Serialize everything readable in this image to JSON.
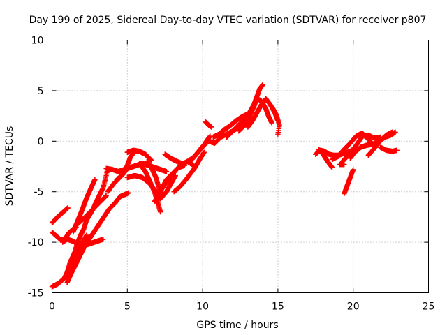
{
  "chart_data": {
    "type": "scatter",
    "title": "Day 199 of 2025, Sidereal Day-to-day VTEC variation (SDTVAR) for receiver p807",
    "xlabel": "GPS time / hours",
    "ylabel": "SDTVAR / TECUs",
    "xlim": [
      0,
      25
    ],
    "ylim": [
      -15,
      10
    ],
    "xticks": [
      0,
      5,
      10,
      15,
      20,
      25
    ],
    "yticks": [
      -15,
      -10,
      -5,
      0,
      5,
      10
    ],
    "xtick_labels": [
      "0",
      "5",
      "10",
      "15",
      "20",
      "25"
    ],
    "ytick_labels": [
      "-15",
      "-10",
      "-5",
      "0",
      "5",
      "10"
    ],
    "grid": true,
    "legend": "none",
    "marker": "+",
    "color": "#ff0000",
    "tracks": [
      [
        [
          0.0,
          -8.1
        ],
        [
          0.3,
          -7.6
        ],
        [
          0.6,
          -7.2
        ],
        [
          0.9,
          -6.8
        ],
        [
          1.05,
          -6.6
        ]
      ],
      [
        [
          0.0,
          -9.0
        ],
        [
          0.3,
          -9.4
        ],
        [
          0.6,
          -9.8
        ],
        [
          0.9,
          -9.6
        ],
        [
          1.1,
          -9.1
        ],
        [
          1.4,
          -8.7
        ],
        [
          1.6,
          -8.5
        ]
      ],
      [
        [
          0.0,
          -14.4
        ],
        [
          0.4,
          -14.1
        ],
        [
          0.8,
          -13.6
        ],
        [
          1.0,
          -13.0
        ],
        [
          1.3,
          -12.2
        ],
        [
          1.6,
          -11.2
        ],
        [
          2.0,
          -10.1
        ],
        [
          2.3,
          -9.3
        ]
      ],
      [
        [
          0.7,
          -10.0
        ],
        [
          1.0,
          -9.7
        ],
        [
          1.4,
          -9.9
        ],
        [
          1.8,
          -10.3
        ],
        [
          2.2,
          -10.3
        ],
        [
          2.6,
          -10.1
        ],
        [
          3.0,
          -9.9
        ],
        [
          3.4,
          -9.7
        ]
      ],
      [
        [
          1.0,
          -13.0
        ],
        [
          1.2,
          -12.0
        ],
        [
          1.5,
          -11.0
        ],
        [
          1.7,
          -10.0
        ],
        [
          1.9,
          -9.3
        ],
        [
          2.1,
          -8.7
        ],
        [
          2.3,
          -7.8
        ]
      ],
      [
        [
          1.0,
          -14.0
        ],
        [
          1.3,
          -13.0
        ],
        [
          1.6,
          -12.1
        ],
        [
          1.9,
          -11.2
        ],
        [
          2.2,
          -10.3
        ],
        [
          2.6,
          -9.4
        ],
        [
          3.0,
          -8.5
        ],
        [
          3.4,
          -7.6
        ],
        [
          3.8,
          -6.7
        ],
        [
          4.2,
          -6.1
        ],
        [
          4.5,
          -5.5
        ],
        [
          4.8,
          -5.3
        ],
        [
          5.1,
          -5.1
        ]
      ],
      [
        [
          1.6,
          -8.3
        ],
        [
          2.0,
          -7.8
        ],
        [
          2.4,
          -7.2
        ],
        [
          2.8,
          -6.6
        ],
        [
          3.2,
          -6.0
        ],
        [
          3.6,
          -5.4
        ]
      ],
      [
        [
          1.4,
          -9.0
        ],
        [
          1.7,
          -7.9
        ],
        [
          2.0,
          -6.8
        ],
        [
          2.3,
          -5.6
        ],
        [
          2.6,
          -4.6
        ],
        [
          2.85,
          -3.8
        ]
      ],
      [
        [
          2.3,
          -7.8
        ],
        [
          2.7,
          -6.8
        ],
        [
          3.0,
          -5.8
        ],
        [
          3.4,
          -4.6
        ],
        [
          3.6,
          -3.4
        ],
        [
          3.7,
          -2.7
        ]
      ],
      [
        [
          3.6,
          -2.7
        ],
        [
          4.0,
          -2.8
        ],
        [
          4.4,
          -3.0
        ],
        [
          4.8,
          -2.8
        ],
        [
          5.2,
          -2.6
        ],
        [
          5.6,
          -2.4
        ],
        [
          6.0,
          -2.2
        ],
        [
          6.4,
          -2.4
        ],
        [
          6.8,
          -2.6
        ],
        [
          7.2,
          -2.8
        ],
        [
          7.6,
          -3.0
        ]
      ],
      [
        [
          3.7,
          -5.0
        ],
        [
          4.1,
          -4.2
        ],
        [
          4.5,
          -3.6
        ],
        [
          4.8,
          -3.1
        ],
        [
          5.0,
          -2.7
        ]
      ],
      [
        [
          4.3,
          -3.8
        ],
        [
          4.7,
          -3.3
        ],
        [
          5.0,
          -2.4
        ],
        [
          5.2,
          -1.6
        ],
        [
          5.5,
          -1.0
        ]
      ],
      [
        [
          5.0,
          -3.6
        ],
        [
          5.5,
          -3.4
        ],
        [
          6.0,
          -3.6
        ],
        [
          6.5,
          -4.2
        ],
        [
          6.9,
          -5.0
        ],
        [
          7.2,
          -5.7
        ],
        [
          7.6,
          -5.0
        ],
        [
          7.9,
          -4.2
        ],
        [
          8.2,
          -3.4
        ]
      ],
      [
        [
          5.0,
          -1.1
        ],
        [
          5.4,
          -0.9
        ],
        [
          5.8,
          -1.0
        ],
        [
          6.2,
          -1.3
        ],
        [
          6.4,
          -1.6
        ],
        [
          6.6,
          -1.9
        ]
      ],
      [
        [
          6.3,
          -2.0
        ],
        [
          6.6,
          -2.6
        ],
        [
          6.9,
          -3.6
        ],
        [
          7.1,
          -4.6
        ],
        [
          7.3,
          -5.5
        ]
      ],
      [
        [
          5.8,
          -2.2
        ],
        [
          6.2,
          -3.0
        ],
        [
          6.5,
          -4.0
        ],
        [
          6.8,
          -5.0
        ],
        [
          7.0,
          -6.0
        ],
        [
          7.2,
          -7.0
        ]
      ],
      [
        [
          6.8,
          -6.0
        ],
        [
          7.2,
          -5.0
        ],
        [
          7.6,
          -3.8
        ],
        [
          8.0,
          -3.2
        ],
        [
          8.4,
          -2.6
        ],
        [
          8.8,
          -2.4
        ]
      ],
      [
        [
          7.0,
          -5.3
        ],
        [
          7.4,
          -4.5
        ],
        [
          7.8,
          -3.7
        ],
        [
          8.2,
          -2.9
        ],
        [
          8.6,
          -2.3
        ],
        [
          9.0,
          -2.0
        ],
        [
          9.4,
          -2.4
        ]
      ],
      [
        [
          7.5,
          -1.3
        ],
        [
          7.9,
          -1.7
        ],
        [
          8.3,
          -2.0
        ],
        [
          8.6,
          -2.2
        ]
      ],
      [
        [
          8.1,
          -5.0
        ],
        [
          8.5,
          -4.5
        ],
        [
          8.9,
          -3.8
        ],
        [
          9.2,
          -3.2
        ],
        [
          9.5,
          -2.6
        ],
        [
          9.8,
          -1.8
        ],
        [
          10.1,
          -1.1
        ]
      ],
      [
        [
          9.0,
          -2.0
        ],
        [
          9.4,
          -1.6
        ],
        [
          9.8,
          -0.9
        ],
        [
          10.1,
          -0.4
        ],
        [
          10.3,
          0.1
        ],
        [
          10.5,
          0.5
        ]
      ],
      [
        [
          9.3,
          -1.8
        ],
        [
          9.7,
          -1.1
        ],
        [
          10.0,
          -0.5
        ],
        [
          10.4,
          0.0
        ],
        [
          10.8,
          -0.2
        ],
        [
          11.2,
          0.4
        ],
        [
          11.6,
          0.7
        ],
        [
          12.0,
          1.0
        ],
        [
          12.4,
          1.4
        ]
      ],
      [
        [
          10.2,
          1.9
        ],
        [
          10.4,
          1.6
        ],
        [
          10.6,
          1.4
        ]
      ],
      [
        [
          10.7,
          0.4
        ],
        [
          11.1,
          0.7
        ],
        [
          11.4,
          1.1
        ],
        [
          11.8,
          1.5
        ],
        [
          12.2,
          2.0
        ],
        [
          12.6,
          2.4
        ],
        [
          13.0,
          2.7
        ]
      ],
      [
        [
          11.6,
          0.4
        ],
        [
          12.0,
          1.0
        ],
        [
          12.4,
          1.6
        ],
        [
          12.8,
          2.2
        ],
        [
          13.1,
          2.8
        ],
        [
          13.4,
          3.6
        ],
        [
          13.6,
          4.4
        ],
        [
          13.8,
          5.2
        ],
        [
          14.0,
          5.6
        ]
      ],
      [
        [
          12.4,
          1.0
        ],
        [
          12.8,
          1.6
        ],
        [
          13.1,
          2.4
        ],
        [
          13.4,
          3.4
        ],
        [
          13.6,
          4.2
        ],
        [
          13.9,
          4.0
        ],
        [
          14.2,
          3.2
        ],
        [
          14.4,
          2.4
        ],
        [
          14.6,
          1.8
        ]
      ],
      [
        [
          13.0,
          1.4
        ],
        [
          13.3,
          2.0
        ],
        [
          13.6,
          2.8
        ],
        [
          13.9,
          3.6
        ],
        [
          14.2,
          4.2
        ],
        [
          14.5,
          3.6
        ],
        [
          14.8,
          2.8
        ],
        [
          15.0,
          2.0
        ]
      ],
      [
        [
          14.6,
          3.4
        ],
        [
          14.9,
          2.6
        ],
        [
          15.1,
          1.6
        ],
        [
          15.0,
          0.7
        ]
      ],
      [
        [
          17.5,
          -1.3
        ],
        [
          17.8,
          -0.9
        ],
        [
          18.1,
          -1.0
        ],
        [
          18.4,
          -1.3
        ],
        [
          18.7,
          -1.4
        ],
        [
          19.0,
          -1.4
        ],
        [
          19.4,
          -1.2
        ],
        [
          19.8,
          -1.0
        ],
        [
          20.2,
          -0.6
        ]
      ],
      [
        [
          17.7,
          -0.8
        ],
        [
          18.0,
          -1.3
        ],
        [
          18.3,
          -2.0
        ],
        [
          18.6,
          -2.6
        ]
      ],
      [
        [
          18.6,
          -1.8
        ],
        [
          19.0,
          -1.5
        ],
        [
          19.4,
          -0.8
        ],
        [
          19.8,
          -0.2
        ],
        [
          20.2,
          0.5
        ],
        [
          20.6,
          0.8
        ],
        [
          21.0,
          0.2
        ],
        [
          21.3,
          -0.3
        ],
        [
          21.6,
          -0.4
        ]
      ],
      [
        [
          19.3,
          -2.0
        ],
        [
          19.6,
          -1.5
        ],
        [
          20.0,
          -0.8
        ],
        [
          20.3,
          -0.2
        ],
        [
          20.6,
          0.5
        ],
        [
          21.0,
          0.6
        ],
        [
          21.4,
          0.3
        ],
        [
          21.8,
          0.4
        ]
      ],
      [
        [
          19.8,
          -1.7
        ],
        [
          20.1,
          -1.1
        ],
        [
          20.5,
          -0.6
        ],
        [
          20.9,
          -0.4
        ],
        [
          21.3,
          -0.3
        ],
        [
          21.7,
          -0.1
        ],
        [
          22.1,
          0.4
        ],
        [
          22.5,
          0.6
        ],
        [
          22.8,
          0.9
        ]
      ],
      [
        [
          21.0,
          -1.4
        ],
        [
          21.3,
          -0.9
        ],
        [
          21.6,
          -0.3
        ],
        [
          21.9,
          0.2
        ],
        [
          22.2,
          0.6
        ],
        [
          22.6,
          0.9
        ]
      ],
      [
        [
          21.8,
          -0.6
        ],
        [
          22.2,
          -0.9
        ],
        [
          22.6,
          -1.0
        ],
        [
          22.9,
          -0.9
        ]
      ],
      [
        [
          19.4,
          -5.2
        ],
        [
          19.6,
          -4.4
        ],
        [
          19.8,
          -3.6
        ],
        [
          20.0,
          -2.8
        ]
      ],
      [
        [
          19.1,
          -2.3
        ],
        [
          19.4,
          -2.3
        ]
      ]
    ]
  }
}
